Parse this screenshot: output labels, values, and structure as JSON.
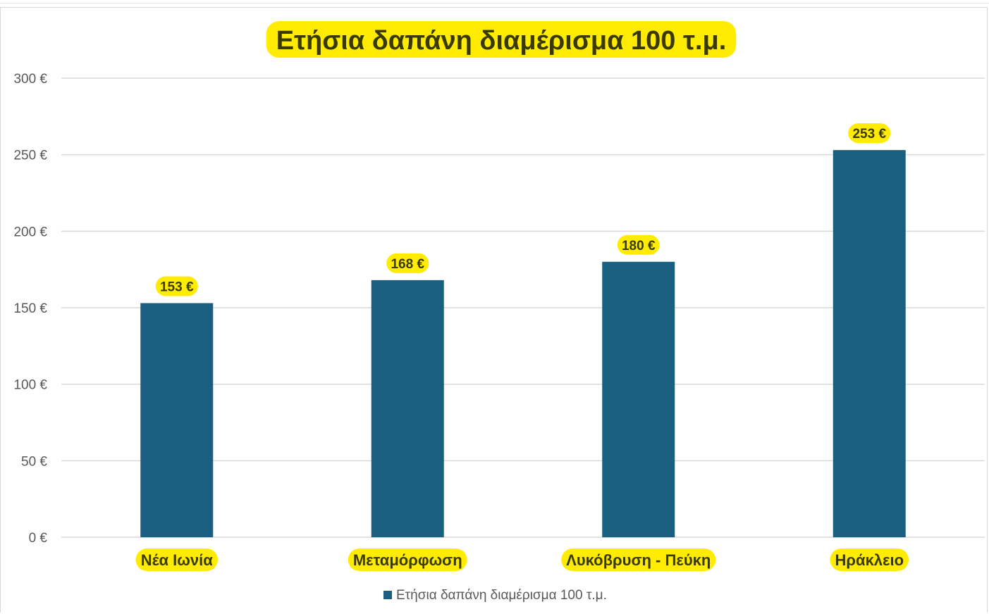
{
  "chart_data": {
    "type": "bar",
    "title": "Ετήσια δαπάνη διαμέρισμα 100 τ.μ.",
    "categories": [
      "Νέα Ιωνία",
      "Μεταμόρφωση",
      "Λυκόβρυση - Πεύκη",
      "Ηράκλειο"
    ],
    "series": [
      {
        "name": "Ετήσια δαπάνη διαμέρισμα 100 τ.μ.",
        "values": [
          153,
          168,
          180,
          253
        ]
      }
    ],
    "data_labels": [
      "153 €",
      "168 €",
      "180 €",
      "253 €"
    ],
    "y_ticks": [
      {
        "value": 0,
        "label": "0 €"
      },
      {
        "value": 50,
        "label": "50 €"
      },
      {
        "value": 100,
        "label": "100 €"
      },
      {
        "value": 150,
        "label": "150 €"
      },
      {
        "value": 200,
        "label": "200 €"
      },
      {
        "value": 250,
        "label": "250 €"
      },
      {
        "value": 300,
        "label": "300 €"
      }
    ],
    "ylim": [
      0,
      300
    ],
    "grid": true,
    "legend_position": "bottom",
    "colors": {
      "bar": "#1a5f80",
      "highlight": "#ffec00",
      "highlight_text": "#3a3a00",
      "grid": "#d9d9d9",
      "axis_text": "#595959"
    }
  }
}
